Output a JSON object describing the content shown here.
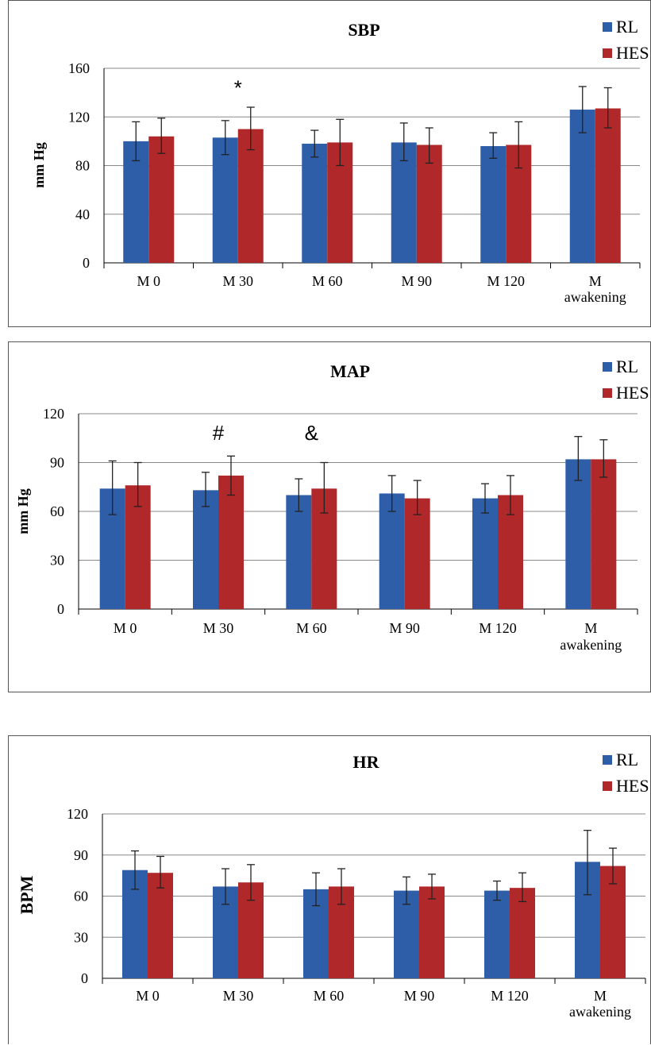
{
  "colors": {
    "RL": "#2e5ea8",
    "HES": "#b0282a",
    "grid": "#888888",
    "axis": "#000000"
  },
  "chart_data": [
    {
      "type": "bar",
      "title": "SBP",
      "ylabel": "mm Hg",
      "xlabel": "",
      "ylim": [
        0,
        160
      ],
      "yticks": [
        0,
        40,
        80,
        120,
        160
      ],
      "categories": [
        "M 0",
        "M 30",
        "M 60",
        "M 90",
        "M 120",
        "M awakening"
      ],
      "legend": {
        "position": "top-right"
      },
      "series": [
        {
          "name": "RL",
          "values": [
            100,
            103,
            98,
            99,
            96,
            126
          ],
          "err_low": [
            84,
            89,
            87,
            84,
            86,
            107
          ],
          "err_high": [
            116,
            117,
            109,
            115,
            107,
            145
          ]
        },
        {
          "name": "HES",
          "values": [
            104,
            110,
            99,
            97,
            97,
            127
          ],
          "err_low": [
            90,
            93,
            80,
            82,
            78,
            111
          ],
          "err_high": [
            119,
            128,
            118,
            111,
            116,
            144
          ]
        }
      ],
      "annotations": [
        {
          "text": "*",
          "category": "M 30",
          "value": 138
        }
      ]
    },
    {
      "type": "bar",
      "title": "MAP",
      "ylabel": "mm Hg",
      "xlabel": "",
      "ylim": [
        0,
        120
      ],
      "yticks": [
        0,
        30,
        60,
        90,
        120
      ],
      "categories": [
        "M 0",
        "M 30",
        "M 60",
        "M 90",
        "M 120",
        "M awakening"
      ],
      "legend": {
        "position": "top-right"
      },
      "series": [
        {
          "name": "RL",
          "values": [
            74,
            73,
            70,
            71,
            68,
            92
          ],
          "err_low": [
            58,
            63,
            60,
            60,
            59,
            79
          ],
          "err_high": [
            91,
            84,
            80,
            82,
            77,
            106
          ]
        },
        {
          "name": "HES",
          "values": [
            76,
            82,
            74,
            68,
            70,
            92
          ],
          "err_low": [
            63,
            70,
            59,
            58,
            58,
            81
          ],
          "err_high": [
            90,
            94,
            90,
            79,
            82,
            104
          ]
        }
      ],
      "annotations": [
        {
          "text": "#",
          "category": "M 30",
          "value": 104
        },
        {
          "text": "&",
          "category": "M 60",
          "value": 104
        }
      ]
    },
    {
      "type": "bar",
      "title": "HR",
      "ylabel": "BPM",
      "xlabel": "",
      "ylim": [
        0,
        120
      ],
      "yticks": [
        0,
        30,
        60,
        90,
        120
      ],
      "categories": [
        "M 0",
        "M 30",
        "M 60",
        "M 90",
        "M 120",
        "M awakening"
      ],
      "legend": {
        "position": "top-right"
      },
      "series": [
        {
          "name": "RL",
          "values": [
            79,
            67,
            65,
            64,
            64,
            85
          ],
          "err_low": [
            65,
            54,
            53,
            54,
            57,
            61
          ],
          "err_high": [
            93,
            80,
            77,
            74,
            71,
            108
          ]
        },
        {
          "name": "HES",
          "values": [
            77,
            70,
            67,
            67,
            66,
            82
          ],
          "err_low": [
            66,
            57,
            54,
            58,
            56,
            69
          ],
          "err_high": [
            89,
            83,
            80,
            76,
            77,
            95
          ]
        }
      ],
      "annotations": []
    }
  ]
}
